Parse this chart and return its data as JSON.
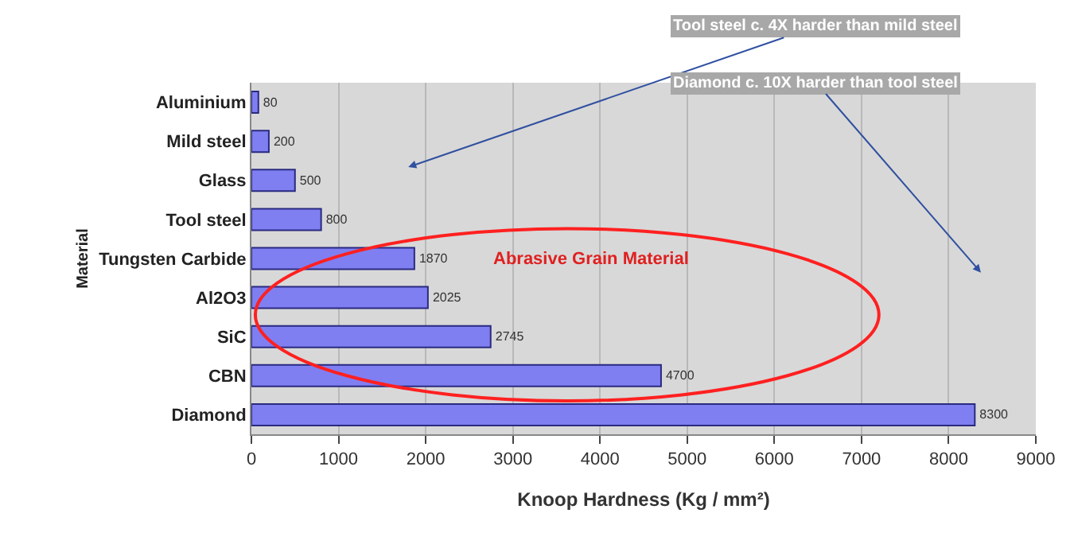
{
  "chart_data": {
    "type": "bar",
    "orientation": "horizontal",
    "xlabel": "Knoop Hardness (Kg / mm²)",
    "ylabel": "Material",
    "categories": [
      "Aluminium",
      "Mild steel",
      "Glass",
      "Tool steel",
      "Tungsten Carbide",
      "Al2O3",
      "SiC",
      "CBN",
      "Diamond"
    ],
    "values": [
      80,
      200,
      500,
      800,
      1870,
      2025,
      2745,
      4700,
      8300
    ],
    "color": "#7f7ff2",
    "xlim": [
      0,
      9000
    ],
    "xticks": [
      0,
      1000,
      2000,
      3000,
      4000,
      5000,
      6000,
      7000,
      8000,
      9000
    ],
    "grid": "x",
    "data_labels": true,
    "annotations": [
      "Tool steel c. 4X harder than mild steel",
      "Diamond c. 10X harder than tool steel",
      "Abrasive Grain Material"
    ]
  }
}
